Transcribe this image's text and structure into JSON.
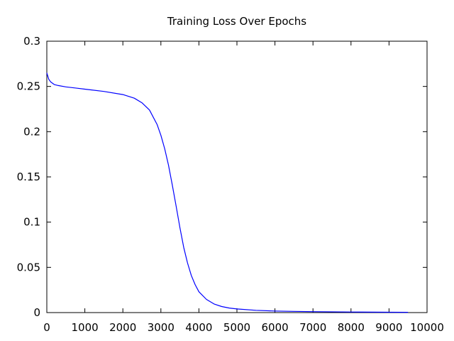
{
  "chart_data": {
    "type": "line",
    "title": "Training Loss Over Epochs",
    "xlabel": "",
    "ylabel": "",
    "xlim": [
      0,
      10000
    ],
    "ylim": [
      0,
      0.3
    ],
    "xticks": [
      0,
      1000,
      2000,
      3000,
      4000,
      5000,
      6000,
      7000,
      8000,
      9000,
      10000
    ],
    "yticks": [
      0,
      0.05,
      0.1,
      0.15,
      0.2,
      0.25,
      0.3
    ],
    "x_tick_labels": [
      "0",
      "1000",
      "2000",
      "3000",
      "4000",
      "5000",
      "6000",
      "7000",
      "8000",
      "9000",
      "10000"
    ],
    "y_tick_labels": [
      "0",
      "0.05",
      "0.1",
      "0.15",
      "0.2",
      "0.25",
      "0.3"
    ],
    "grid": false,
    "legend": false,
    "series": [
      {
        "color": "#0000ff",
        "x": [
          0,
          50,
          100,
          200,
          300,
          500,
          800,
          1000,
          1500,
          2000,
          2300,
          2500,
          2700,
          2900,
          3000,
          3100,
          3200,
          3300,
          3400,
          3500,
          3600,
          3700,
          3800,
          3900,
          4000,
          4200,
          4400,
          4600,
          4800,
          5000,
          5500,
          6000,
          6500,
          7000,
          8000,
          9000,
          9500
        ],
        "y": [
          0.265,
          0.258,
          0.255,
          0.252,
          0.251,
          0.2495,
          0.248,
          0.247,
          0.2445,
          0.241,
          0.237,
          0.232,
          0.224,
          0.208,
          0.196,
          0.181,
          0.163,
          0.141,
          0.118,
          0.094,
          0.072,
          0.055,
          0.041,
          0.031,
          0.023,
          0.0145,
          0.0095,
          0.0067,
          0.005,
          0.004,
          0.0025,
          0.0017,
          0.0013,
          0.001,
          0.0006,
          0.0004,
          0.0003
        ]
      }
    ]
  }
}
